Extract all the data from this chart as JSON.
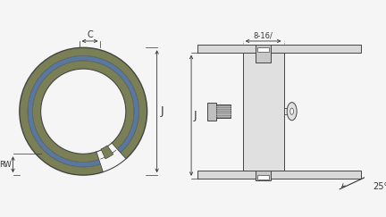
{
  "bg_color": "#f5f5f5",
  "ring_olive": "#7a7f55",
  "ring_blue": "#5878a0",
  "ring_edge": "#444444",
  "dim_color": "#333333",
  "plate_light": "#d8d8d8",
  "plate_mid": "#c0c0c0",
  "body_light": "#e0e0e0",
  "body_mid": "#c8c8c8",
  "thread_dark": "#909090",
  "label_C": "C",
  "label_J": "J",
  "label_RW": "RW",
  "label_8_16": "8-16/",
  "label_25": "25°",
  "fs_small": 6,
  "fs_med": 7,
  "fs_large": 9
}
